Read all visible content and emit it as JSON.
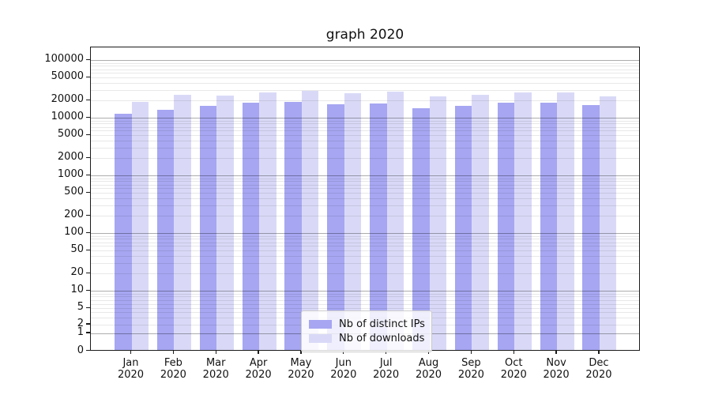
{
  "chart_data": {
    "type": "bar",
    "title": "graph 2020",
    "year_label": "2020",
    "months": [
      "Jan",
      "Feb",
      "Mar",
      "Apr",
      "May",
      "Jun",
      "Jul",
      "Aug",
      "Sep",
      "Oct",
      "Nov",
      "Dec"
    ],
    "categories": [
      "Jan 2020",
      "Feb 2020",
      "Mar 2020",
      "Apr 2020",
      "May 2020",
      "Jun 2020",
      "Jul 2020",
      "Aug 2020",
      "Sep 2020",
      "Oct 2020",
      "Nov 2020",
      "Dec 2020"
    ],
    "series": [
      {
        "name": "Nb of distinct IPs",
        "color": "#a6a6f2",
        "values": [
          11000,
          13000,
          15000,
          17000,
          18000,
          16000,
          16500,
          14000,
          15000,
          17500,
          17000,
          15500
        ]
      },
      {
        "name": "Nb of downloads",
        "color": "#d9d9f7",
        "values": [
          18000,
          24000,
          23000,
          26000,
          28000,
          25000,
          26500,
          22000,
          24000,
          26000,
          26000,
          22500
        ]
      }
    ],
    "y_ticks": [
      0,
      1,
      2,
      5,
      10,
      20,
      50,
      100,
      200,
      500,
      1000,
      2000,
      5000,
      10000,
      20000,
      50000,
      100000
    ],
    "y_scale": "symlog",
    "ylim": [
      0,
      150000
    ],
    "xlabel": "",
    "ylabel": "",
    "grid": "both",
    "legend_position": "lower center"
  }
}
